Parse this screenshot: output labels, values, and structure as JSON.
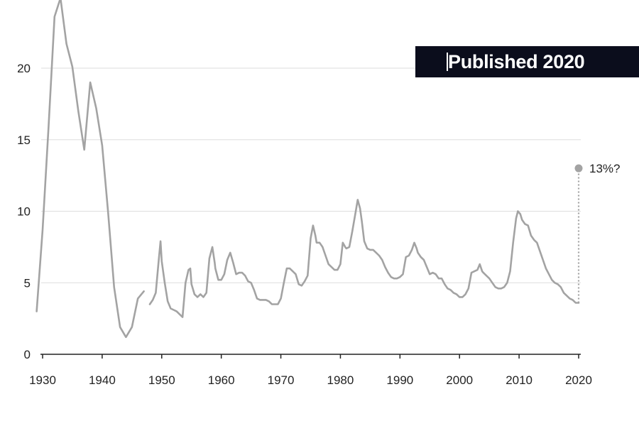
{
  "badge": {
    "label": "Published 2020"
  },
  "chart_data": {
    "type": "line",
    "title": "",
    "xlabel": "",
    "ylabel": "",
    "xlim": [
      1929,
      2021
    ],
    "ylim": [
      0,
      22.5
    ],
    "y_ticks": [
      0,
      5,
      10,
      15,
      20
    ],
    "y_tick_labels": [
      "0",
      "5",
      "10",
      "15",
      "20"
    ],
    "x_ticks": [
      1930,
      1940,
      1950,
      1960,
      1970,
      1980,
      1990,
      2000,
      2010,
      2020
    ],
    "x_tick_labels": [
      "1930",
      "1940",
      "1950",
      "1960",
      "1970",
      "1980",
      "1990",
      "2000",
      "2010",
      "2020"
    ],
    "grid": "horizontal",
    "line_color": "#a3a3a3",
    "grid_color": "#dddddd",
    "series": [
      {
        "segment": "annual",
        "points": [
          [
            1929,
            3.0
          ],
          [
            1930,
            8.7
          ],
          [
            1931,
            15.9
          ],
          [
            1932,
            23.6
          ],
          [
            1933,
            24.9
          ],
          [
            1934,
            21.7
          ],
          [
            1935,
            20.1
          ],
          [
            1936,
            17.0
          ],
          [
            1937,
            14.3
          ],
          [
            1938,
            19.0
          ],
          [
            1939,
            17.2
          ],
          [
            1940,
            14.6
          ],
          [
            1941,
            9.9
          ],
          [
            1942,
            4.7
          ],
          [
            1943,
            1.9
          ],
          [
            1944,
            1.2
          ],
          [
            1945,
            1.9
          ],
          [
            1946,
            3.9
          ],
          [
            1947,
            4.4
          ]
        ]
      },
      {
        "segment": "monthly",
        "points": [
          [
            1948,
            3.5
          ],
          [
            1948.5,
            3.8
          ],
          [
            1949,
            4.3
          ],
          [
            1949.5,
            6.6
          ],
          [
            1949.8,
            7.9
          ],
          [
            1950,
            6.5
          ],
          [
            1950.5,
            5.0
          ],
          [
            1951,
            3.7
          ],
          [
            1951.5,
            3.2
          ],
          [
            1952,
            3.1
          ],
          [
            1952.5,
            3.0
          ],
          [
            1953,
            2.8
          ],
          [
            1953.5,
            2.6
          ],
          [
            1954,
            5.0
          ],
          [
            1954.5,
            5.9
          ],
          [
            1954.8,
            6.0
          ],
          [
            1955,
            4.9
          ],
          [
            1955.5,
            4.2
          ],
          [
            1956,
            4.0
          ],
          [
            1956.5,
            4.2
          ],
          [
            1957,
            4.0
          ],
          [
            1957.5,
            4.3
          ],
          [
            1958,
            6.7
          ],
          [
            1958.5,
            7.5
          ],
          [
            1958.9,
            6.4
          ],
          [
            1959,
            6.0
          ],
          [
            1959.5,
            5.2
          ],
          [
            1960,
            5.2
          ],
          [
            1960.5,
            5.6
          ],
          [
            1961,
            6.6
          ],
          [
            1961.5,
            7.1
          ],
          [
            1962,
            6.4
          ],
          [
            1962.5,
            5.6
          ],
          [
            1963,
            5.7
          ],
          [
            1963.5,
            5.7
          ],
          [
            1964,
            5.5
          ],
          [
            1964.5,
            5.1
          ],
          [
            1965,
            5.0
          ],
          [
            1965.5,
            4.5
          ],
          [
            1966,
            3.9
          ],
          [
            1966.5,
            3.8
          ],
          [
            1967,
            3.8
          ],
          [
            1967.5,
            3.8
          ],
          [
            1968,
            3.7
          ],
          [
            1968.5,
            3.5
          ],
          [
            1969,
            3.5
          ],
          [
            1969.5,
            3.5
          ],
          [
            1970,
            3.9
          ],
          [
            1970.5,
            5.0
          ],
          [
            1971,
            6.0
          ],
          [
            1971.5,
            6.0
          ],
          [
            1972,
            5.8
          ],
          [
            1972.5,
            5.6
          ],
          [
            1973,
            4.9
          ],
          [
            1973.5,
            4.8
          ],
          [
            1974,
            5.1
          ],
          [
            1974.5,
            5.5
          ],
          [
            1975,
            8.1
          ],
          [
            1975.4,
            9.0
          ],
          [
            1975.8,
            8.3
          ],
          [
            1976,
            7.8
          ],
          [
            1976.5,
            7.8
          ],
          [
            1977,
            7.5
          ],
          [
            1977.5,
            6.9
          ],
          [
            1978,
            6.3
          ],
          [
            1978.5,
            6.1
          ],
          [
            1979,
            5.9
          ],
          [
            1979.5,
            5.9
          ],
          [
            1980,
            6.3
          ],
          [
            1980.4,
            7.8
          ],
          [
            1980.8,
            7.5
          ],
          [
            1981,
            7.4
          ],
          [
            1981.5,
            7.5
          ],
          [
            1982,
            8.6
          ],
          [
            1982.5,
            9.8
          ],
          [
            1982.9,
            10.8
          ],
          [
            1983.3,
            10.2
          ],
          [
            1983.6,
            9.3
          ],
          [
            1984,
            7.9
          ],
          [
            1984.5,
            7.4
          ],
          [
            1985,
            7.3
          ],
          [
            1985.5,
            7.3
          ],
          [
            1986,
            7.1
          ],
          [
            1986.5,
            6.9
          ],
          [
            1987,
            6.6
          ],
          [
            1987.5,
            6.1
          ],
          [
            1988,
            5.7
          ],
          [
            1988.5,
            5.4
          ],
          [
            1989,
            5.3
          ],
          [
            1989.5,
            5.3
          ],
          [
            1990,
            5.4
          ],
          [
            1990.5,
            5.6
          ],
          [
            1991,
            6.8
          ],
          [
            1991.5,
            6.9
          ],
          [
            1992,
            7.3
          ],
          [
            1992.4,
            7.8
          ],
          [
            1992.8,
            7.4
          ],
          [
            1993,
            7.1
          ],
          [
            1993.5,
            6.8
          ],
          [
            1994,
            6.6
          ],
          [
            1994.5,
            6.1
          ],
          [
            1995,
            5.6
          ],
          [
            1995.5,
            5.7
          ],
          [
            1996,
            5.6
          ],
          [
            1996.5,
            5.3
          ],
          [
            1997,
            5.3
          ],
          [
            1997.5,
            4.9
          ],
          [
            1998,
            4.6
          ],
          [
            1998.5,
            4.5
          ],
          [
            1999,
            4.3
          ],
          [
            1999.5,
            4.2
          ],
          [
            2000,
            4.0
          ],
          [
            2000.5,
            4.0
          ],
          [
            2001,
            4.2
          ],
          [
            2001.5,
            4.6
          ],
          [
            2002,
            5.7
          ],
          [
            2002.5,
            5.8
          ],
          [
            2003,
            5.9
          ],
          [
            2003.4,
            6.3
          ],
          [
            2003.8,
            5.8
          ],
          [
            2004,
            5.7
          ],
          [
            2004.5,
            5.5
          ],
          [
            2005,
            5.3
          ],
          [
            2005.5,
            5.0
          ],
          [
            2006,
            4.7
          ],
          [
            2006.5,
            4.6
          ],
          [
            2007,
            4.6
          ],
          [
            2007.5,
            4.7
          ],
          [
            2008,
            5.0
          ],
          [
            2008.5,
            5.8
          ],
          [
            2009,
            7.8
          ],
          [
            2009.5,
            9.5
          ],
          [
            2009.8,
            10.0
          ],
          [
            2010.2,
            9.8
          ],
          [
            2010.5,
            9.4
          ],
          [
            2011,
            9.1
          ],
          [
            2011.5,
            9.0
          ],
          [
            2012,
            8.3
          ],
          [
            2012.5,
            8.0
          ],
          [
            2013,
            7.8
          ],
          [
            2013.5,
            7.2
          ],
          [
            2014,
            6.6
          ],
          [
            2014.5,
            6.0
          ],
          [
            2015,
            5.6
          ],
          [
            2015.5,
            5.2
          ],
          [
            2016,
            5.0
          ],
          [
            2016.5,
            4.9
          ],
          [
            2017,
            4.7
          ],
          [
            2017.5,
            4.3
          ],
          [
            2018,
            4.1
          ],
          [
            2018.5,
            3.9
          ],
          [
            2019,
            3.8
          ],
          [
            2019.5,
            3.6
          ],
          [
            2020,
            3.6
          ]
        ]
      }
    ],
    "annotation": {
      "label": "13%?",
      "x": 2020,
      "y": 13,
      "style": "dotted",
      "from_y": 3.6
    }
  }
}
